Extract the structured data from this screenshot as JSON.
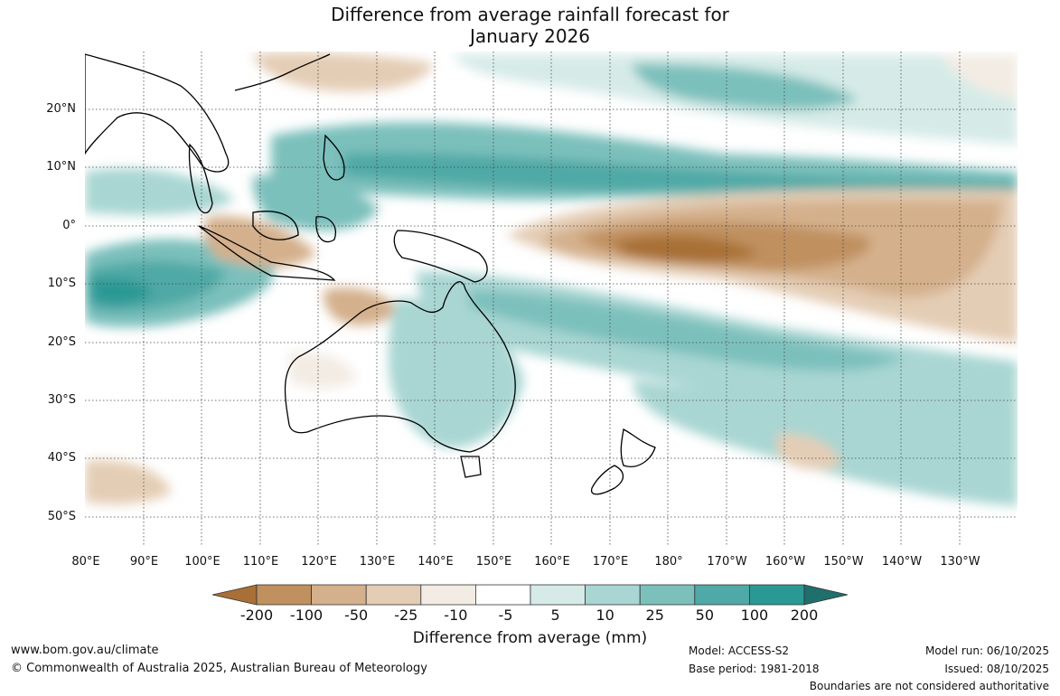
{
  "title_line1": "Difference from average rainfall forecast for",
  "title_line2": "January 2026",
  "lat_labels": [
    "20°N",
    "10°N",
    "0°",
    "10°S",
    "20°S",
    "30°S",
    "40°S",
    "50°S"
  ],
  "lon_labels": [
    "80°E",
    "90°E",
    "100°E",
    "110°E",
    "120°E",
    "130°E",
    "140°E",
    "150°E",
    "160°E",
    "170°E",
    "180°",
    "170°W",
    "160°W",
    "150°W",
    "140°W",
    "130°W"
  ],
  "colorbar": {
    "ticks": [
      "-200",
      "-100",
      "-50",
      "-25",
      "-10",
      "-5",
      "5",
      "10",
      "25",
      "50",
      "100",
      "200"
    ],
    "colors": [
      "#a86f36",
      "#c0905e",
      "#d4b08c",
      "#e4cdb5",
      "#f3ece4",
      "#ffffff",
      "#d6ebe8",
      "#a9d6d3",
      "#7cc0bc",
      "#4fa9a6",
      "#2a9994",
      "#1f6f6c"
    ],
    "label": "Difference from average (mm)"
  },
  "footer": {
    "website": "www.bom.gov.au/climate",
    "copyright": "© Commonwealth of Australia 2025, Australian Bureau of Meteorology",
    "model": "Model: ACCESS-S2",
    "base_period": "Base period: 1981-2018",
    "model_run": "Model run: 06/10/2025",
    "issued": "Issued: 08/10/2025",
    "disclaimer": "Boundaries are not considered authoritative"
  }
}
